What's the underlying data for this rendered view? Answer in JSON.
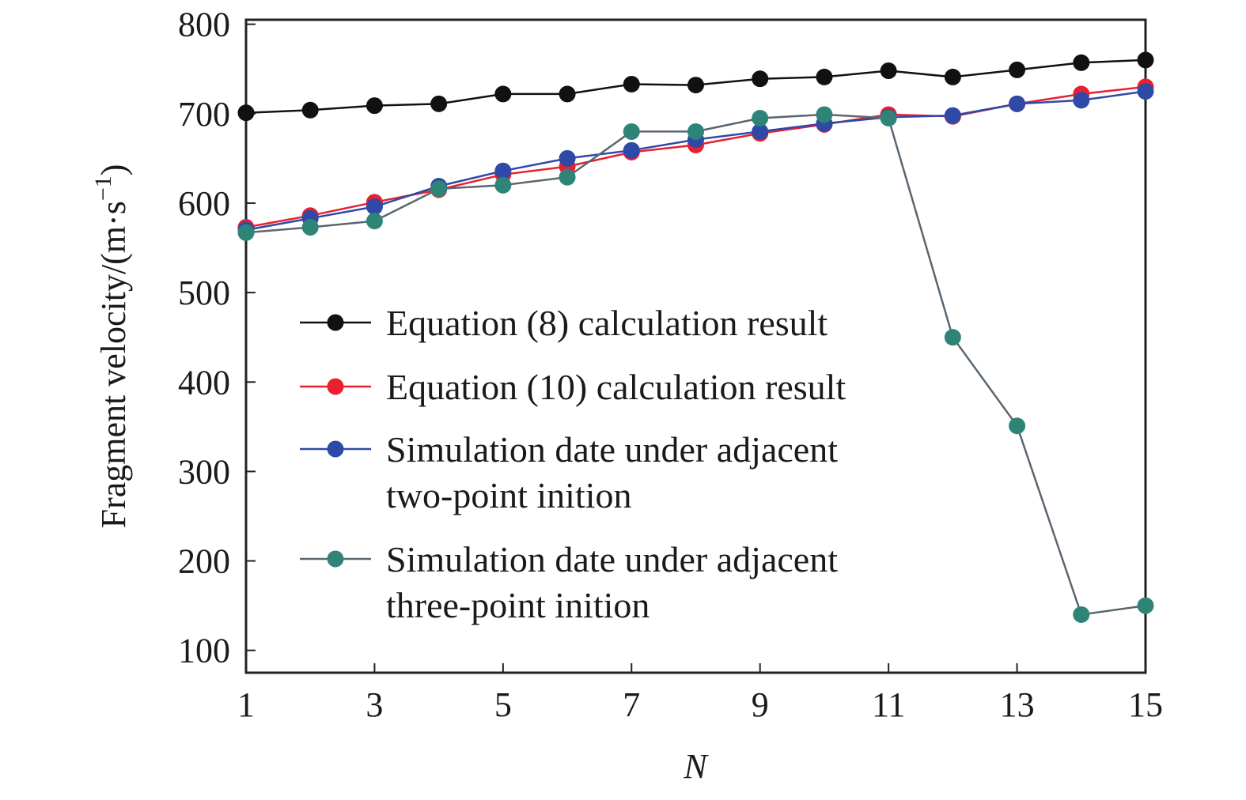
{
  "chart_data": {
    "type": "line",
    "xlabel": "N",
    "ylabel": "Fragment velocity/(m·s",
    "ylabel_exp": "−1",
    "ylabel_close": ")",
    "xlim": [
      1,
      15
    ],
    "ylim": [
      75,
      805
    ],
    "xticks": [
      1,
      3,
      5,
      7,
      9,
      11,
      13,
      15
    ],
    "yticks": [
      100,
      200,
      300,
      400,
      500,
      600,
      700,
      800
    ],
    "grid": false,
    "legend_position": "center",
    "x": [
      1,
      2,
      3,
      4,
      5,
      6,
      7,
      8,
      9,
      10,
      11,
      12,
      13,
      14,
      15
    ],
    "series": [
      {
        "name": "Equation (8) calculation result",
        "color": "#111111",
        "line_color": "#111111",
        "values": [
          701,
          704,
          709,
          711,
          722,
          722,
          733,
          732,
          739,
          741,
          748,
          741,
          749,
          757,
          760
        ]
      },
      {
        "name": "Equation (10) calculation result",
        "color": "#e8202f",
        "line_color": "#e8202f",
        "values": [
          573,
          586,
          601,
          615,
          632,
          641,
          657,
          665,
          678,
          688,
          699,
          697,
          711,
          722,
          730
        ]
      },
      {
        "name": "Simulation date under adjacent two-point inition",
        "legend_lines": [
          "Simulation date under adjacent",
          "two-point inition"
        ],
        "color": "#2e4aa6",
        "line_color": "#2e4aa6",
        "values": [
          570,
          583,
          596,
          619,
          636,
          650,
          659,
          671,
          680,
          689,
          696,
          698,
          711,
          715,
          725
        ]
      },
      {
        "name": "Simulation date under adjacent three-point inition",
        "legend_lines": [
          "Simulation date under adjacent",
          "three-point inition"
        ],
        "color": "#2f8478",
        "line_color": "#5a6670",
        "values": [
          567,
          573,
          580,
          616,
          620,
          629,
          680,
          680,
          695,
          699,
          695,
          450,
          351,
          140,
          150
        ]
      }
    ]
  }
}
